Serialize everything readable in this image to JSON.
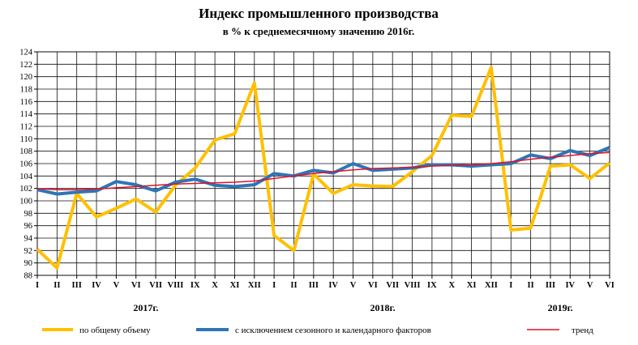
{
  "chart_data": {
    "type": "line",
    "title": "Индекс промышленного производства",
    "subtitle": "в % к среднемесячному значению 2016г.",
    "ylim": [
      88,
      124
    ],
    "yticks": [
      88,
      90,
      92,
      94,
      96,
      98,
      100,
      102,
      104,
      106,
      108,
      110,
      112,
      114,
      116,
      118,
      120,
      122,
      124
    ],
    "grid": true,
    "categories": [
      "I",
      "II",
      "III",
      "IV",
      "V",
      "VI",
      "VII",
      "VIII",
      "IX",
      "X",
      "XI",
      "XII",
      "I",
      "II",
      "III",
      "IV",
      "V",
      "VI",
      "VII",
      "VIII",
      "IX",
      "X",
      "XI",
      "XII",
      "I",
      "II",
      "III",
      "IV",
      "V",
      "VI"
    ],
    "years": [
      {
        "label": "2017г.",
        "center_index": 5.5
      },
      {
        "label": "2018г.",
        "center_index": 17.5
      },
      {
        "label": "2019г.",
        "center_index": 26.5
      }
    ],
    "legend_position": "bottom",
    "series": [
      {
        "name": "по общему объему",
        "color": "#FFC000",
        "width": 4,
        "values": [
          92.2,
          89.2,
          101.2,
          97.4,
          98.8,
          100.3,
          98.2,
          102.5,
          105.3,
          109.8,
          110.8,
          119.0,
          94.4,
          92.0,
          104.3,
          101.2,
          102.6,
          102.4,
          102.3,
          104.7,
          107.3,
          113.8,
          113.6,
          121.5,
          95.3,
          95.6,
          105.6,
          105.8,
          103.6,
          106.1
        ]
      },
      {
        "name": "с исключением сезонного и календарного факторов",
        "color": "#2E75B6",
        "width": 4,
        "values": [
          101.8,
          101.1,
          101.4,
          101.6,
          103.1,
          102.6,
          101.6,
          103.0,
          103.5,
          102.5,
          102.3,
          102.6,
          104.4,
          104.0,
          104.9,
          104.5,
          106.0,
          104.9,
          105.1,
          105.3,
          105.8,
          105.8,
          105.6,
          105.8,
          106.0,
          107.4,
          106.8,
          108.1,
          107.3,
          108.6
        ]
      },
      {
        "name": "тренд",
        "color": "#E0102A",
        "width": 1.5,
        "values": [
          102.0,
          101.8,
          101.8,
          101.9,
          102.1,
          102.3,
          102.5,
          102.7,
          102.8,
          102.9,
          103.0,
          103.2,
          103.6,
          104.0,
          104.4,
          104.7,
          105.0,
          105.2,
          105.3,
          105.4,
          105.6,
          105.7,
          105.8,
          106.0,
          106.3,
          106.7,
          107.0,
          107.3,
          107.6,
          107.8
        ]
      }
    ]
  }
}
